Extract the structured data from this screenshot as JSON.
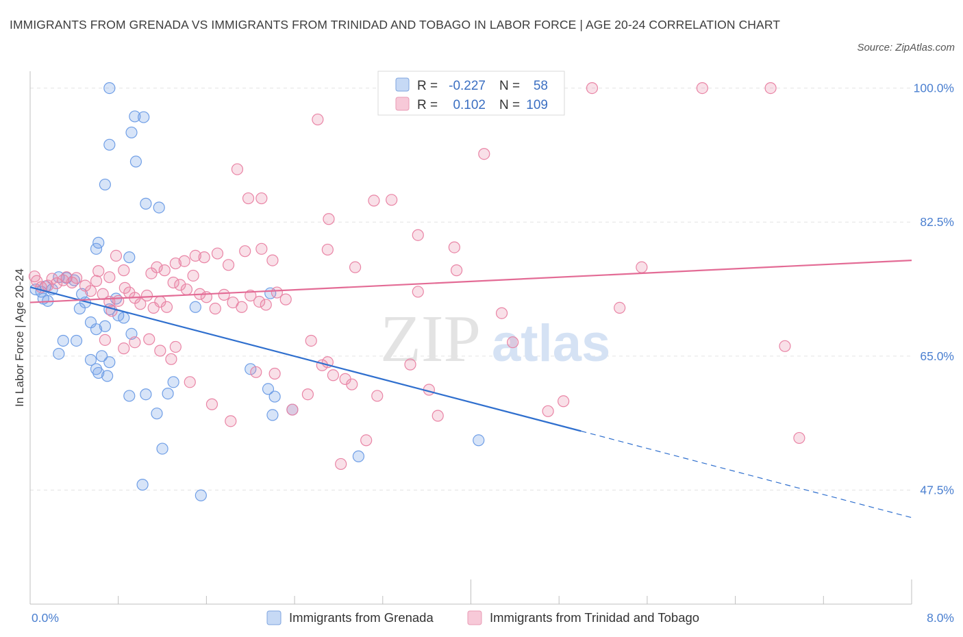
{
  "title": "IMMIGRANTS FROM GRENADA VS IMMIGRANTS FROM TRINIDAD AND TOBAGO IN LABOR FORCE | AGE 20-24 CORRELATION CHART",
  "source": "Source: ZipAtlas.com",
  "watermark": {
    "zip": "ZIP",
    "atlas": "atlas"
  },
  "legend": {
    "r_label": "R =",
    "n_label": "N =",
    "rows": [
      {
        "r": "-0.227",
        "n": "58"
      },
      {
        "r": "0.102",
        "n": "109"
      }
    ]
  },
  "chart_data": {
    "type": "scatter",
    "xlabel": "",
    "ylabel": "In Labor Force | Age 20-24",
    "xlim": [
      0,
      8
    ],
    "ylim": [
      32.6,
      102.2
    ],
    "x_tick_labels": [
      "0.0%",
      "8.0%"
    ],
    "y_ticks": [
      47.5,
      65.0,
      82.5,
      100.0
    ],
    "y_tick_labels": [
      "47.5%",
      "65.0%",
      "82.5%",
      "100.0%"
    ],
    "grid": true,
    "legend_position": "top-center",
    "colors": {
      "grenada": "#6f9ee6",
      "trinidad": "#e984a5",
      "grenada_line": "#2f6fce",
      "trinidad_line": "#e36b95",
      "tick": "#4a7fd0"
    },
    "series": [
      {
        "name": "Immigrants from Grenada",
        "r": -0.227,
        "n": 58,
        "trend": {
          "x": [
            0.0,
            5.0
          ],
          "y": [
            74.0,
            55.2
          ],
          "dashed_to": [
            8.0,
            43.9
          ]
        },
        "points": [
          [
            0.05,
            73.7
          ],
          [
            0.1,
            73.4
          ],
          [
            0.14,
            74.1
          ],
          [
            0.12,
            72.5
          ],
          [
            0.16,
            72.2
          ],
          [
            0.2,
            73.7
          ],
          [
            0.26,
            75.3
          ],
          [
            0.33,
            75.2
          ],
          [
            0.4,
            74.9
          ],
          [
            0.47,
            73.1
          ],
          [
            0.5,
            72.0
          ],
          [
            0.45,
            71.2
          ],
          [
            0.3,
            67.0
          ],
          [
            0.26,
            65.3
          ],
          [
            0.42,
            67.0
          ],
          [
            0.55,
            69.4
          ],
          [
            0.6,
            68.5
          ],
          [
            0.72,
            71.1
          ],
          [
            0.78,
            72.5
          ],
          [
            0.6,
            79.0
          ],
          [
            0.62,
            79.8
          ],
          [
            0.9,
            77.9
          ],
          [
            0.8,
            70.3
          ],
          [
            0.85,
            70.0
          ],
          [
            0.92,
            67.9
          ],
          [
            0.68,
            68.9
          ],
          [
            0.65,
            65.0
          ],
          [
            0.72,
            64.2
          ],
          [
            0.55,
            64.5
          ],
          [
            0.6,
            63.3
          ],
          [
            0.62,
            62.8
          ],
          [
            0.7,
            62.4
          ],
          [
            0.9,
            59.8
          ],
          [
            1.05,
            60.0
          ],
          [
            1.15,
            57.5
          ],
          [
            1.2,
            52.9
          ],
          [
            1.02,
            48.2
          ],
          [
            1.25,
            60.1
          ],
          [
            1.3,
            61.6
          ],
          [
            1.5,
            71.4
          ],
          [
            1.55,
            46.8
          ],
          [
            2.0,
            63.3
          ],
          [
            2.2,
            57.3
          ],
          [
            2.16,
            60.7
          ],
          [
            2.22,
            59.7
          ],
          [
            2.38,
            58.0
          ],
          [
            2.98,
            51.9
          ],
          [
            4.07,
            54.0
          ],
          [
            2.18,
            73.2
          ],
          [
            0.72,
            100.0
          ],
          [
            0.95,
            96.3
          ],
          [
            1.03,
            96.2
          ],
          [
            0.92,
            94.2
          ],
          [
            0.72,
            92.6
          ],
          [
            0.96,
            90.4
          ],
          [
            0.68,
            87.4
          ],
          [
            1.05,
            84.9
          ],
          [
            1.17,
            84.4
          ]
        ]
      },
      {
        "name": "Immigrants from Trinidad and Tobago",
        "r": 0.102,
        "n": 109,
        "trend": {
          "x": [
            0.0,
            8.0
          ],
          "y": [
            72.0,
            77.5
          ]
        },
        "points": [
          [
            0.04,
            75.4
          ],
          [
            0.06,
            74.8
          ],
          [
            0.1,
            74.0
          ],
          [
            0.16,
            74.2
          ],
          [
            0.2,
            75.1
          ],
          [
            0.24,
            74.5
          ],
          [
            0.3,
            74.9
          ],
          [
            0.33,
            75.3
          ],
          [
            0.38,
            74.6
          ],
          [
            0.42,
            75.2
          ],
          [
            0.5,
            74.2
          ],
          [
            0.55,
            73.5
          ],
          [
            0.6,
            74.8
          ],
          [
            0.66,
            73.1
          ],
          [
            0.72,
            72.1
          ],
          [
            0.74,
            70.9
          ],
          [
            0.8,
            72.2
          ],
          [
            0.86,
            73.9
          ],
          [
            0.9,
            73.3
          ],
          [
            0.95,
            72.6
          ],
          [
            1.0,
            71.8
          ],
          [
            1.06,
            72.9
          ],
          [
            1.12,
            71.3
          ],
          [
            1.18,
            72.1
          ],
          [
            1.24,
            71.4
          ],
          [
            1.3,
            74.6
          ],
          [
            1.36,
            74.3
          ],
          [
            1.42,
            73.7
          ],
          [
            1.48,
            75.5
          ],
          [
            1.54,
            73.1
          ],
          [
            1.6,
            72.7
          ],
          [
            1.68,
            71.2
          ],
          [
            1.76,
            73.0
          ],
          [
            1.84,
            72.0
          ],
          [
            1.92,
            71.4
          ],
          [
            2.0,
            72.9
          ],
          [
            2.08,
            72.1
          ],
          [
            2.14,
            71.7
          ],
          [
            2.24,
            73.3
          ],
          [
            2.32,
            72.4
          ],
          [
            0.62,
            76.1
          ],
          [
            0.72,
            75.3
          ],
          [
            0.78,
            78.1
          ],
          [
            0.85,
            76.2
          ],
          [
            1.1,
            75.8
          ],
          [
            1.15,
            76.6
          ],
          [
            1.22,
            76.2
          ],
          [
            1.32,
            77.1
          ],
          [
            1.4,
            77.4
          ],
          [
            1.5,
            78.1
          ],
          [
            1.58,
            77.9
          ],
          [
            1.7,
            78.4
          ],
          [
            1.8,
            76.9
          ],
          [
            1.95,
            78.7
          ],
          [
            2.1,
            79.0
          ],
          [
            2.2,
            77.5
          ],
          [
            0.68,
            67.1
          ],
          [
            0.85,
            66.0
          ],
          [
            0.95,
            66.8
          ],
          [
            1.08,
            67.2
          ],
          [
            1.18,
            65.7
          ],
          [
            1.28,
            64.6
          ],
          [
            1.32,
            66.2
          ],
          [
            1.45,
            61.6
          ],
          [
            1.65,
            58.7
          ],
          [
            1.82,
            56.5
          ],
          [
            2.05,
            62.9
          ],
          [
            2.22,
            62.7
          ],
          [
            2.38,
            58.0
          ],
          [
            2.52,
            60.0
          ],
          [
            2.65,
            63.8
          ],
          [
            2.75,
            62.5
          ],
          [
            2.86,
            62.0
          ],
          [
            2.92,
            61.3
          ],
          [
            3.05,
            54.0
          ],
          [
            3.15,
            59.8
          ],
          [
            3.45,
            63.9
          ],
          [
            3.62,
            60.6
          ],
          [
            3.7,
            57.2
          ],
          [
            4.28,
            70.6
          ],
          [
            4.38,
            66.8
          ],
          [
            4.7,
            57.8
          ],
          [
            4.84,
            59.1
          ],
          [
            5.35,
            71.3
          ],
          [
            5.55,
            76.6
          ],
          [
            6.85,
            66.3
          ],
          [
            6.98,
            54.3
          ],
          [
            2.82,
            50.9
          ],
          [
            3.52,
            80.8
          ],
          [
            4.12,
            91.4
          ],
          [
            3.12,
            85.3
          ],
          [
            3.28,
            85.4
          ],
          [
            1.88,
            89.4
          ],
          [
            1.98,
            85.6
          ],
          [
            2.1,
            85.6
          ],
          [
            2.61,
            95.9
          ],
          [
            2.71,
            82.9
          ],
          [
            2.7,
            78.9
          ],
          [
            2.95,
            76.6
          ],
          [
            3.85,
            79.2
          ],
          [
            3.87,
            76.2
          ],
          [
            3.52,
            73.4
          ],
          [
            4.78,
            97.5
          ],
          [
            3.3,
            100.0
          ],
          [
            5.1,
            100.0
          ],
          [
            6.1,
            100.0
          ],
          [
            6.72,
            100.0
          ],
          [
            2.55,
            67.0
          ],
          [
            2.7,
            64.2
          ]
        ]
      }
    ]
  }
}
